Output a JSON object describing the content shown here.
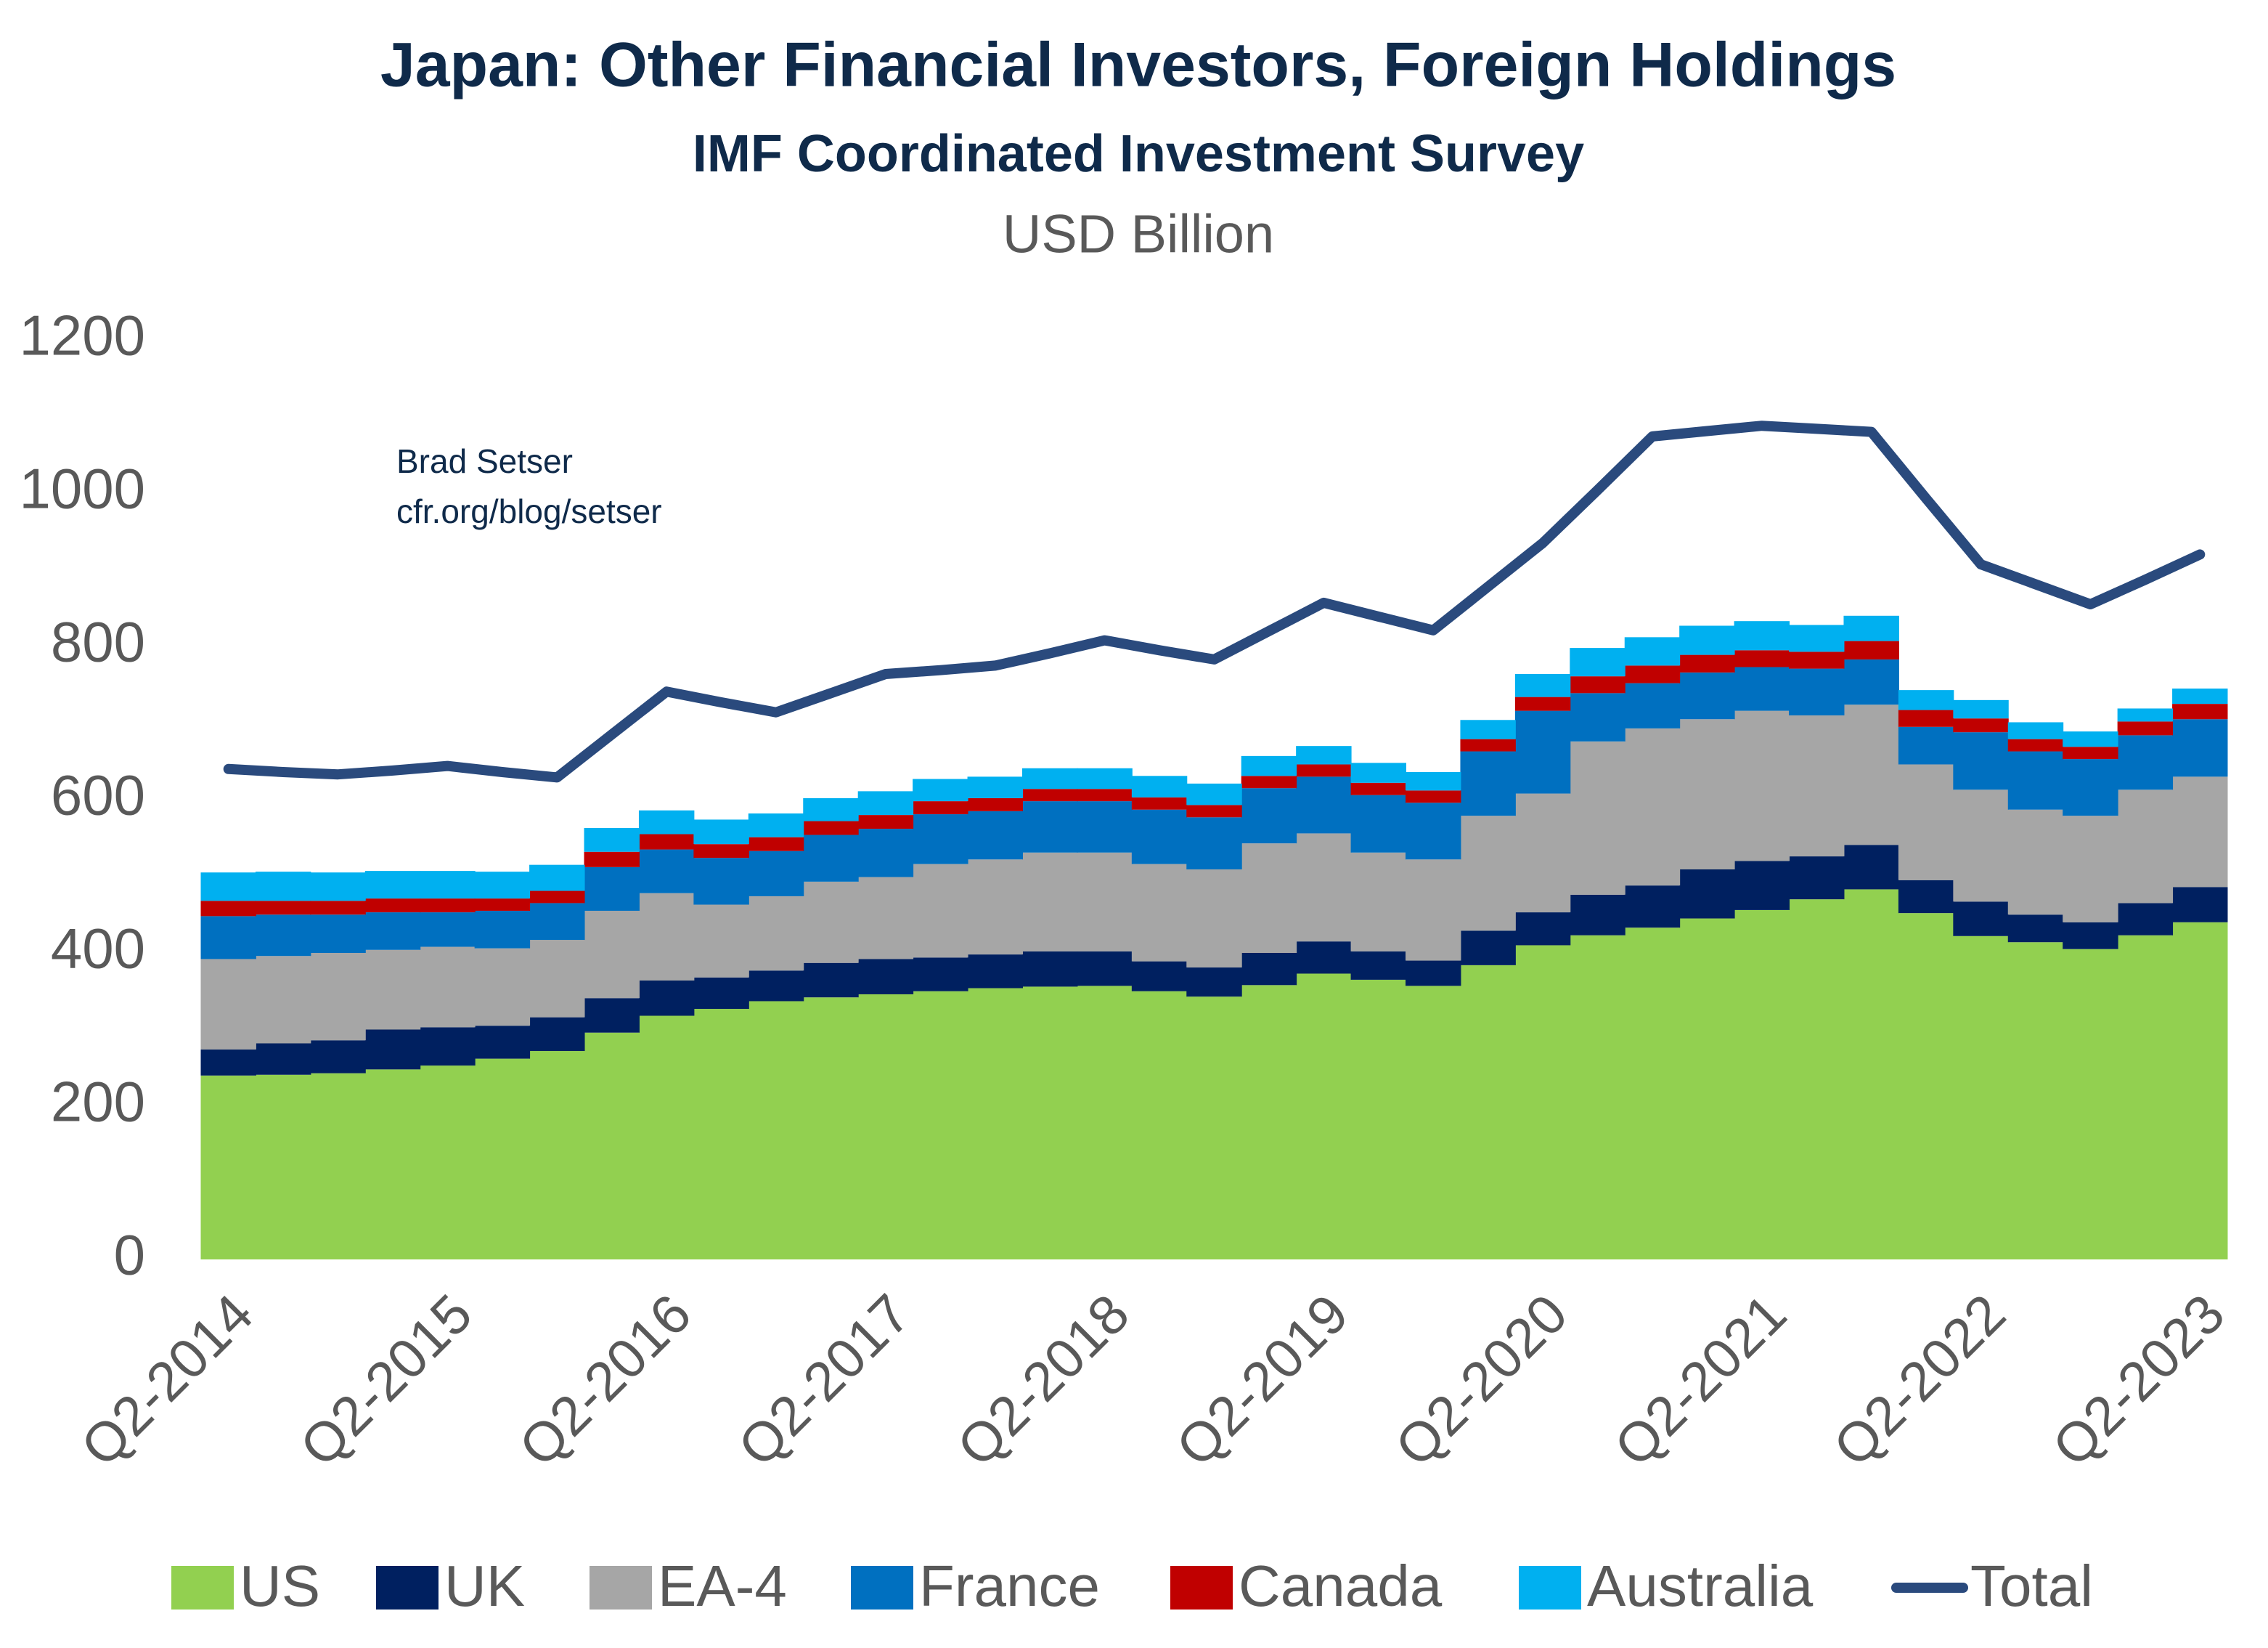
{
  "chart_data": {
    "type": "area",
    "stacked": true,
    "title": "Japan: Other Financial Investors, Foreign Holdings",
    "subtitle": "IMF Coordinated Investment Survey",
    "y_label": "USD Billion",
    "annotation": [
      "Brad Setser",
      "cfr.org/blog/setser"
    ],
    "categories": [
      "Q2-2014",
      null,
      null,
      null,
      "Q2-2015",
      null,
      null,
      null,
      "Q2-2016",
      null,
      null,
      null,
      "Q2-2017",
      null,
      null,
      null,
      "Q2-2018",
      null,
      null,
      null,
      "Q2-2019",
      null,
      null,
      null,
      "Q2-2020",
      null,
      null,
      null,
      "Q2-2021",
      null,
      null,
      null,
      "Q2-2022",
      null,
      null,
      null,
      "Q2-2023"
    ],
    "ylim": [
      0,
      1200
    ],
    "yticks": [
      0,
      200,
      400,
      600,
      800,
      1000,
      1200
    ],
    "grid": false,
    "legend": "bottom",
    "series": [
      {
        "name": "US",
        "color": "#92d050",
        "values": [
          240,
          241,
          243,
          248,
          253,
          262,
          272,
          296,
          318,
          327,
          337,
          342,
          346,
          350,
          354,
          356,
          357,
          350,
          343,
          358,
          373,
          365,
          357,
          384,
          410,
          423,
          433,
          445,
          456,
          470,
          483,
          452,
          422,
          414,
          405,
          423,
          440
        ]
      },
      {
        "name": "UK",
        "color": "#002060",
        "values": [
          34,
          41,
          43,
          52,
          50,
          43,
          44,
          45,
          46,
          41,
          40,
          45,
          46,
          44,
          44,
          46,
          45,
          39,
          38,
          42,
          42,
          37,
          33,
          45,
          43,
          53,
          55,
          64,
          64,
          56,
          58,
          43,
          45,
          36,
          35,
          42,
          46
        ]
      },
      {
        "name": "EA-4",
        "color": "#a6a6a6",
        "values": [
          118,
          114,
          114,
          104,
          105,
          101,
          101,
          114,
          114,
          95,
          97,
          106,
          107,
          122,
          124,
          129,
          129,
          127,
          128,
          143,
          141,
          129,
          132,
          150,
          155,
          200,
          205,
          196,
          196,
          184,
          183,
          151,
          146,
          137,
          139,
          148,
          144
        ]
      },
      {
        "name": "France",
        "color": "#0070c0",
        "values": [
          56,
          54,
          50,
          49,
          45,
          49,
          48,
          57,
          57,
          61,
          59,
          61,
          63,
          65,
          63,
          67,
          67,
          71,
          68,
          72,
          74,
          75,
          74,
          84,
          108,
          63,
          59,
          61,
          57,
          61,
          59,
          49,
          75,
          76,
          74,
          71,
          75
        ]
      },
      {
        "name": "Canada",
        "color": "#c00000",
        "values": [
          20,
          18,
          18,
          18,
          18,
          16,
          16,
          20,
          20,
          18,
          18,
          18,
          18,
          17,
          17,
          16,
          16,
          16,
          16,
          16,
          16,
          16,
          16,
          16,
          18,
          22,
          23,
          23,
          22,
          22,
          24,
          22,
          18,
          16,
          16,
          18,
          20
        ]
      },
      {
        "name": "Australia",
        "color": "#00b0f0",
        "values": [
          37,
          38,
          37,
          36,
          36,
          35,
          34,
          31,
          31,
          32,
          31,
          30,
          31,
          29,
          28,
          27,
          27,
          28,
          28,
          26,
          24,
          26,
          24,
          25,
          30,
          37,
          37,
          38,
          38,
          35,
          33,
          26,
          24,
          22,
          20,
          17,
          20
        ]
      },
      {
        "name": "Total",
        "type": "line",
        "color": "#2a4a7d",
        "values": [
          640,
          636,
          633,
          638,
          644,
          636,
          629,
          685,
          741,
          727,
          714,
          739,
          764,
          769,
          775,
          791,
          808,
          795,
          783,
          820,
          857,
          839,
          821,
          878,
          935,
          1004,
          1074,
          1081,
          1088,
          1084,
          1080,
          993,
          907,
          881,
          855,
          887,
          920
        ]
      }
    ]
  }
}
